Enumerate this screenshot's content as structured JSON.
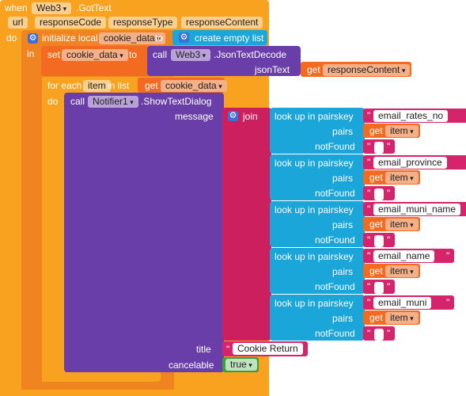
{
  "event": {
    "when": "when",
    "component": "Web3",
    "event_name": ".GotText",
    "params": [
      "url",
      "responseCode",
      "responseType",
      "responseContent"
    ],
    "do": "do"
  },
  "init_local": {
    "label": "initialize local",
    "var": "cookie_data",
    "to": "to",
    "value": "create empty list",
    "in": "in"
  },
  "set_block": {
    "set": "set",
    "var": "cookie_data",
    "to": "to",
    "call": "call",
    "component": "Web3",
    "method": ".JsonTextDecode",
    "arg_label": "jsonText",
    "get": "get",
    "get_var": "responseContent"
  },
  "foreach": {
    "label": "for each",
    "item": "item",
    "in_list": "in list",
    "get": "get",
    "get_var": "cookie_data",
    "do": "do"
  },
  "notifier": {
    "call": "call",
    "component": "Notifier1",
    "method": ".ShowTextDialog",
    "message_label": "message",
    "join": "join",
    "title_label": "title",
    "title_value": "Cookie Return",
    "cancelable_label": "cancelable",
    "cancelable_value": "true"
  },
  "lookups": [
    {
      "label": "look up in pairs",
      "key_label": "key",
      "key": "email_rates_no",
      "pairs_label": "pairs",
      "get": "get",
      "pairs_var": "item",
      "notfound_label": "notFound"
    },
    {
      "label": "look up in pairs",
      "key_label": "key",
      "key": "email_province",
      "pairs_label": "pairs",
      "get": "get",
      "pairs_var": "item",
      "notfound_label": "notFound"
    },
    {
      "label": "look up in pairs",
      "key_label": "key",
      "key": "email_muni_name",
      "pairs_label": "pairs",
      "get": "get",
      "pairs_var": "item",
      "notfound_label": "notFound"
    },
    {
      "label": "look up in pairs",
      "key_label": "key",
      "key": "email_name",
      "pairs_label": "pairs",
      "get": "get",
      "pairs_var": "item",
      "notfound_label": "notFound"
    },
    {
      "label": "look up in pairs",
      "key_label": "key",
      "key": "email_muni",
      "pairs_label": "pairs",
      "get": "get",
      "pairs_var": "item",
      "notfound_label": "notFound"
    }
  ],
  "colors": {
    "event": "#f9a21f",
    "local": "#f08420",
    "procedure": "#6a3ea8",
    "text": "#d6246c",
    "list": "#1aa6d8",
    "logic": "#3b9f3b"
  }
}
